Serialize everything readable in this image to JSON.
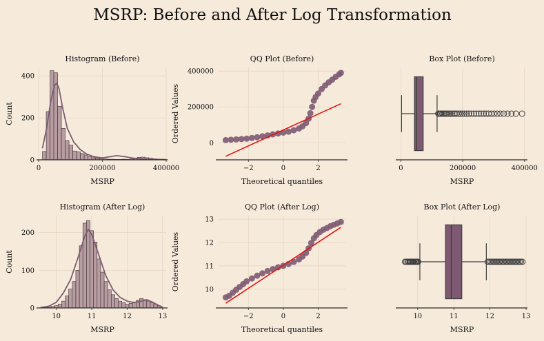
{
  "figure": {
    "title": "MSRP: Before and After Log Transformation"
  },
  "colors": {
    "background": "#f6eadb",
    "bar_fill": "#b79da1",
    "accent": "#7d5a72",
    "fit_line": "#e0150f",
    "grid": "#e6d6c3",
    "spine": "#2b2b2b",
    "box_line": "#3e3e3e"
  },
  "chart_data": [
    {
      "id": "hist_before",
      "type": "bar",
      "title": "Histogram (Before)",
      "xlabel": "MSRP",
      "ylabel": "Count",
      "xlim": [
        0,
        400000
      ],
      "ylim": [
        0,
        440
      ],
      "xticks": [
        0,
        200000,
        400000
      ],
      "xtick_labels": [
        "0",
        "200000",
        "400000"
      ],
      "yticks": [
        0,
        200,
        400
      ],
      "yticks_labels": [
        "0",
        "200",
        "400"
      ],
      "bin_start": 12000,
      "bin_width": 11900,
      "values": [
        40,
        230,
        425,
        415,
        255,
        150,
        92,
        70,
        42,
        38,
        30,
        23,
        15,
        10,
        7,
        5,
        4,
        3,
        3,
        2,
        2,
        3,
        2,
        4,
        9,
        12,
        13,
        10,
        8,
        5,
        4,
        2,
        1
      ],
      "kde": [
        [
          12000,
          55
        ],
        [
          25000,
          150
        ],
        [
          38000,
          280
        ],
        [
          50000,
          355
        ],
        [
          57000,
          365
        ],
        [
          64000,
          340
        ],
        [
          75000,
          250
        ],
        [
          90000,
          150
        ],
        [
          110000,
          85
        ],
        [
          130000,
          50
        ],
        [
          150000,
          28
        ],
        [
          175000,
          14
        ],
        [
          200000,
          9
        ],
        [
          225000,
          15
        ],
        [
          245000,
          20
        ],
        [
          270000,
          15
        ],
        [
          300000,
          7
        ],
        [
          340000,
          3
        ],
        [
          400000,
          1
        ]
      ]
    },
    {
      "id": "qq_before",
      "type": "scatter",
      "title": "QQ Plot (Before)",
      "xlabel": "Theoretical quantiles",
      "ylabel": "Ordered Values",
      "xlim": [
        -3.75,
        3.6
      ],
      "ylim": [
        -95000,
        420000
      ],
      "xticks": [
        -2,
        0,
        2
      ],
      "xtick_labels": [
        "−2",
        "0",
        "2"
      ],
      "yticks": [
        0,
        200000,
        400000
      ],
      "yticks_labels": [
        "0",
        "200000",
        "400000"
      ],
      "points": [
        [
          -3.3,
          15000
        ],
        [
          -3.0,
          17000
        ],
        [
          -2.7,
          19000
        ],
        [
          -2.4,
          21000
        ],
        [
          -2.1,
          23000
        ],
        [
          -1.8,
          27000
        ],
        [
          -1.5,
          31000
        ],
        [
          -1.2,
          36000
        ],
        [
          -0.9,
          41000
        ],
        [
          -0.6,
          47000
        ],
        [
          -0.3,
          52000
        ],
        [
          0.0,
          57000
        ],
        [
          0.3,
          62000
        ],
        [
          0.6,
          70000
        ],
        [
          0.9,
          80000
        ],
        [
          1.1,
          92000
        ],
        [
          1.3,
          110000
        ],
        [
          1.45,
          135000
        ],
        [
          1.55,
          165000
        ],
        [
          1.65,
          200000
        ],
        [
          1.75,
          235000
        ],
        [
          1.85,
          255000
        ],
        [
          2.0,
          275000
        ],
        [
          2.2,
          300000
        ],
        [
          2.4,
          320000
        ],
        [
          2.6,
          337000
        ],
        [
          2.8,
          352000
        ],
        [
          3.0,
          368000
        ],
        [
          3.2,
          382000
        ],
        [
          3.3,
          390000
        ]
      ],
      "fit_line": [
        [
          -3.3,
          -75000
        ],
        [
          3.3,
          218000
        ]
      ]
    },
    {
      "id": "box_before",
      "type": "box",
      "title": "Box Plot (Before)",
      "xlabel": "MSRP",
      "xlim": [
        -10000,
        405000
      ],
      "xticks": [
        0,
        200000,
        400000
      ],
      "xtick_labels": [
        "0",
        "200000",
        "400000"
      ],
      "whisker_low": 2000,
      "q1": 44000,
      "median": 50000,
      "q3": 72000,
      "whisker_high": 117000,
      "outliers": [
        121000,
        124000,
        127000,
        130000,
        134000,
        138000,
        142000,
        146000,
        150000,
        155000,
        160000,
        165000,
        170000,
        175000,
        181000,
        187000,
        193000,
        199000,
        206000,
        213000,
        220000,
        228000,
        236000,
        244000,
        252000,
        260000,
        268000,
        276000,
        284000,
        293000,
        302000,
        312000,
        322000,
        333000,
        345000,
        358000,
        372000,
        392000
      ]
    },
    {
      "id": "hist_after",
      "type": "bar",
      "title": "Histogram (After Log)",
      "xlabel": "MSRP",
      "ylabel": "Count",
      "xlim": [
        9.5,
        13.1
      ],
      "ylim": [
        0,
        245
      ],
      "xticks": [
        10,
        11,
        12,
        13
      ],
      "xtick_labels": [
        "10",
        "11",
        "12",
        "13"
      ],
      "yticks": [
        0,
        100,
        200
      ],
      "yticks_labels": [
        "0",
        "100",
        "200"
      ],
      "bin_start": 9.65,
      "bin_width": 0.1,
      "values": [
        1,
        2,
        4,
        6,
        10,
        18,
        32,
        50,
        70,
        100,
        165,
        225,
        232,
        205,
        175,
        130,
        95,
        70,
        48,
        35,
        25,
        18,
        14,
        10,
        12,
        16,
        20,
        25,
        22,
        18,
        14,
        10,
        6
      ],
      "kde": [
        [
          9.55,
          1
        ],
        [
          9.8,
          5
        ],
        [
          10.0,
          15
        ],
        [
          10.2,
          40
        ],
        [
          10.4,
          75
        ],
        [
          10.6,
          130
        ],
        [
          10.8,
          190
        ],
        [
          10.9,
          208
        ],
        [
          11.0,
          195
        ],
        [
          11.2,
          140
        ],
        [
          11.4,
          85
        ],
        [
          11.6,
          48
        ],
        [
          11.8,
          28
        ],
        [
          12.0,
          18
        ],
        [
          12.2,
          14
        ],
        [
          12.4,
          18
        ],
        [
          12.55,
          22
        ],
        [
          12.7,
          16
        ],
        [
          12.9,
          6
        ],
        [
          13.0,
          2
        ]
      ]
    },
    {
      "id": "qq_after",
      "type": "scatter",
      "title": "QQ Plot (After Log)",
      "xlabel": "Theoretical quantiles",
      "ylabel": "Ordered Values",
      "xlim": [
        -3.75,
        3.6
      ],
      "ylim": [
        9.2,
        13.15
      ],
      "xticks": [
        -2,
        0,
        2
      ],
      "xtick_labels": [
        "−2",
        "0",
        "2"
      ],
      "yticks": [
        10,
        11,
        12,
        13
      ],
      "yticks_labels": [
        "10",
        "11",
        "12",
        "13"
      ],
      "points": [
        [
          -3.3,
          9.65
        ],
        [
          -3.1,
          9.72
        ],
        [
          -2.9,
          9.85
        ],
        [
          -2.7,
          9.98
        ],
        [
          -2.5,
          10.1
        ],
        [
          -2.3,
          10.22
        ],
        [
          -2.1,
          10.34
        ],
        [
          -1.8,
          10.46
        ],
        [
          -1.5,
          10.58
        ],
        [
          -1.2,
          10.68
        ],
        [
          -0.9,
          10.78
        ],
        [
          -0.6,
          10.86
        ],
        [
          -0.3,
          10.94
        ],
        [
          0.0,
          11.0
        ],
        [
          0.3,
          11.08
        ],
        [
          0.6,
          11.17
        ],
        [
          0.9,
          11.28
        ],
        [
          1.1,
          11.4
        ],
        [
          1.3,
          11.55
        ],
        [
          1.45,
          11.75
        ],
        [
          1.6,
          11.98
        ],
        [
          1.75,
          12.18
        ],
        [
          1.9,
          12.32
        ],
        [
          2.1,
          12.45
        ],
        [
          2.3,
          12.55
        ],
        [
          2.5,
          12.62
        ],
        [
          2.7,
          12.7
        ],
        [
          2.9,
          12.76
        ],
        [
          3.1,
          12.82
        ],
        [
          3.3,
          12.88
        ]
      ],
      "fit_line": [
        [
          -3.3,
          9.4
        ],
        [
          3.3,
          12.65
        ]
      ]
    },
    {
      "id": "box_after",
      "type": "box",
      "title": "Box Plot (After Log)",
      "xlabel": "MSRP",
      "xlim": [
        9.45,
        13.0
      ],
      "xticks": [
        10,
        11,
        12,
        13
      ],
      "xtick_labels": [
        "10",
        "11",
        "12",
        "13"
      ],
      "whisker_low": 10.06,
      "q1": 10.77,
      "median": 10.93,
      "q3": 11.22,
      "whisker_high": 11.9,
      "outliers": [
        9.65,
        9.68,
        9.72,
        9.75,
        9.78,
        9.8,
        9.83,
        9.86,
        9.88,
        9.9,
        9.93,
        9.95,
        9.97,
        9.99,
        10.01,
        11.94,
        11.98,
        12.02,
        12.06,
        12.1,
        12.14,
        12.18,
        12.22,
        12.26,
        12.3,
        12.34,
        12.38,
        12.42,
        12.46,
        12.5,
        12.54,
        12.58,
        12.62,
        12.66,
        12.7,
        12.74,
        12.78,
        12.82,
        12.86,
        12.9
      ]
    }
  ]
}
